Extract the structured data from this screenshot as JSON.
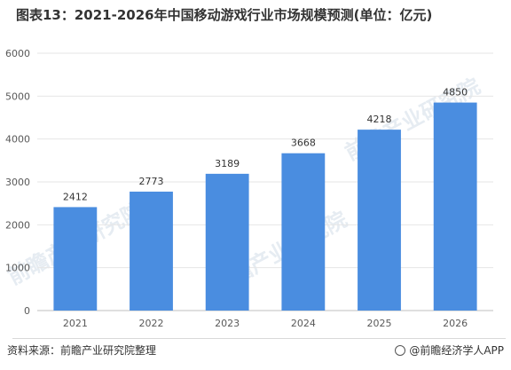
{
  "title": "图表13：2021-2026年中国移动游戏行业市场规模预测(单位：亿元)",
  "source": "资料来源：前瞻产业研究院整理",
  "brand": "@前瞻经济学人APP",
  "watermark_text": "前瞻产业研究院",
  "colors": {
    "bar": "#4a8de0",
    "grid": "#e6e6e6",
    "axis": "#bfbfbf",
    "text": "#595959"
  },
  "chart_data": {
    "type": "bar",
    "title": "图表13：2021-2026年中国移动游戏行业市场规模预测(单位：亿元)",
    "categories": [
      "2021",
      "2022",
      "2023",
      "2024",
      "2025",
      "2026"
    ],
    "values": [
      2412,
      2773,
      3189,
      3668,
      4218,
      4850
    ],
    "ylim": [
      0,
      6000
    ],
    "yticks": [
      0,
      1000,
      2000,
      3000,
      4000,
      5000,
      6000
    ],
    "grid": true,
    "legend": "none",
    "data_labels": true
  }
}
